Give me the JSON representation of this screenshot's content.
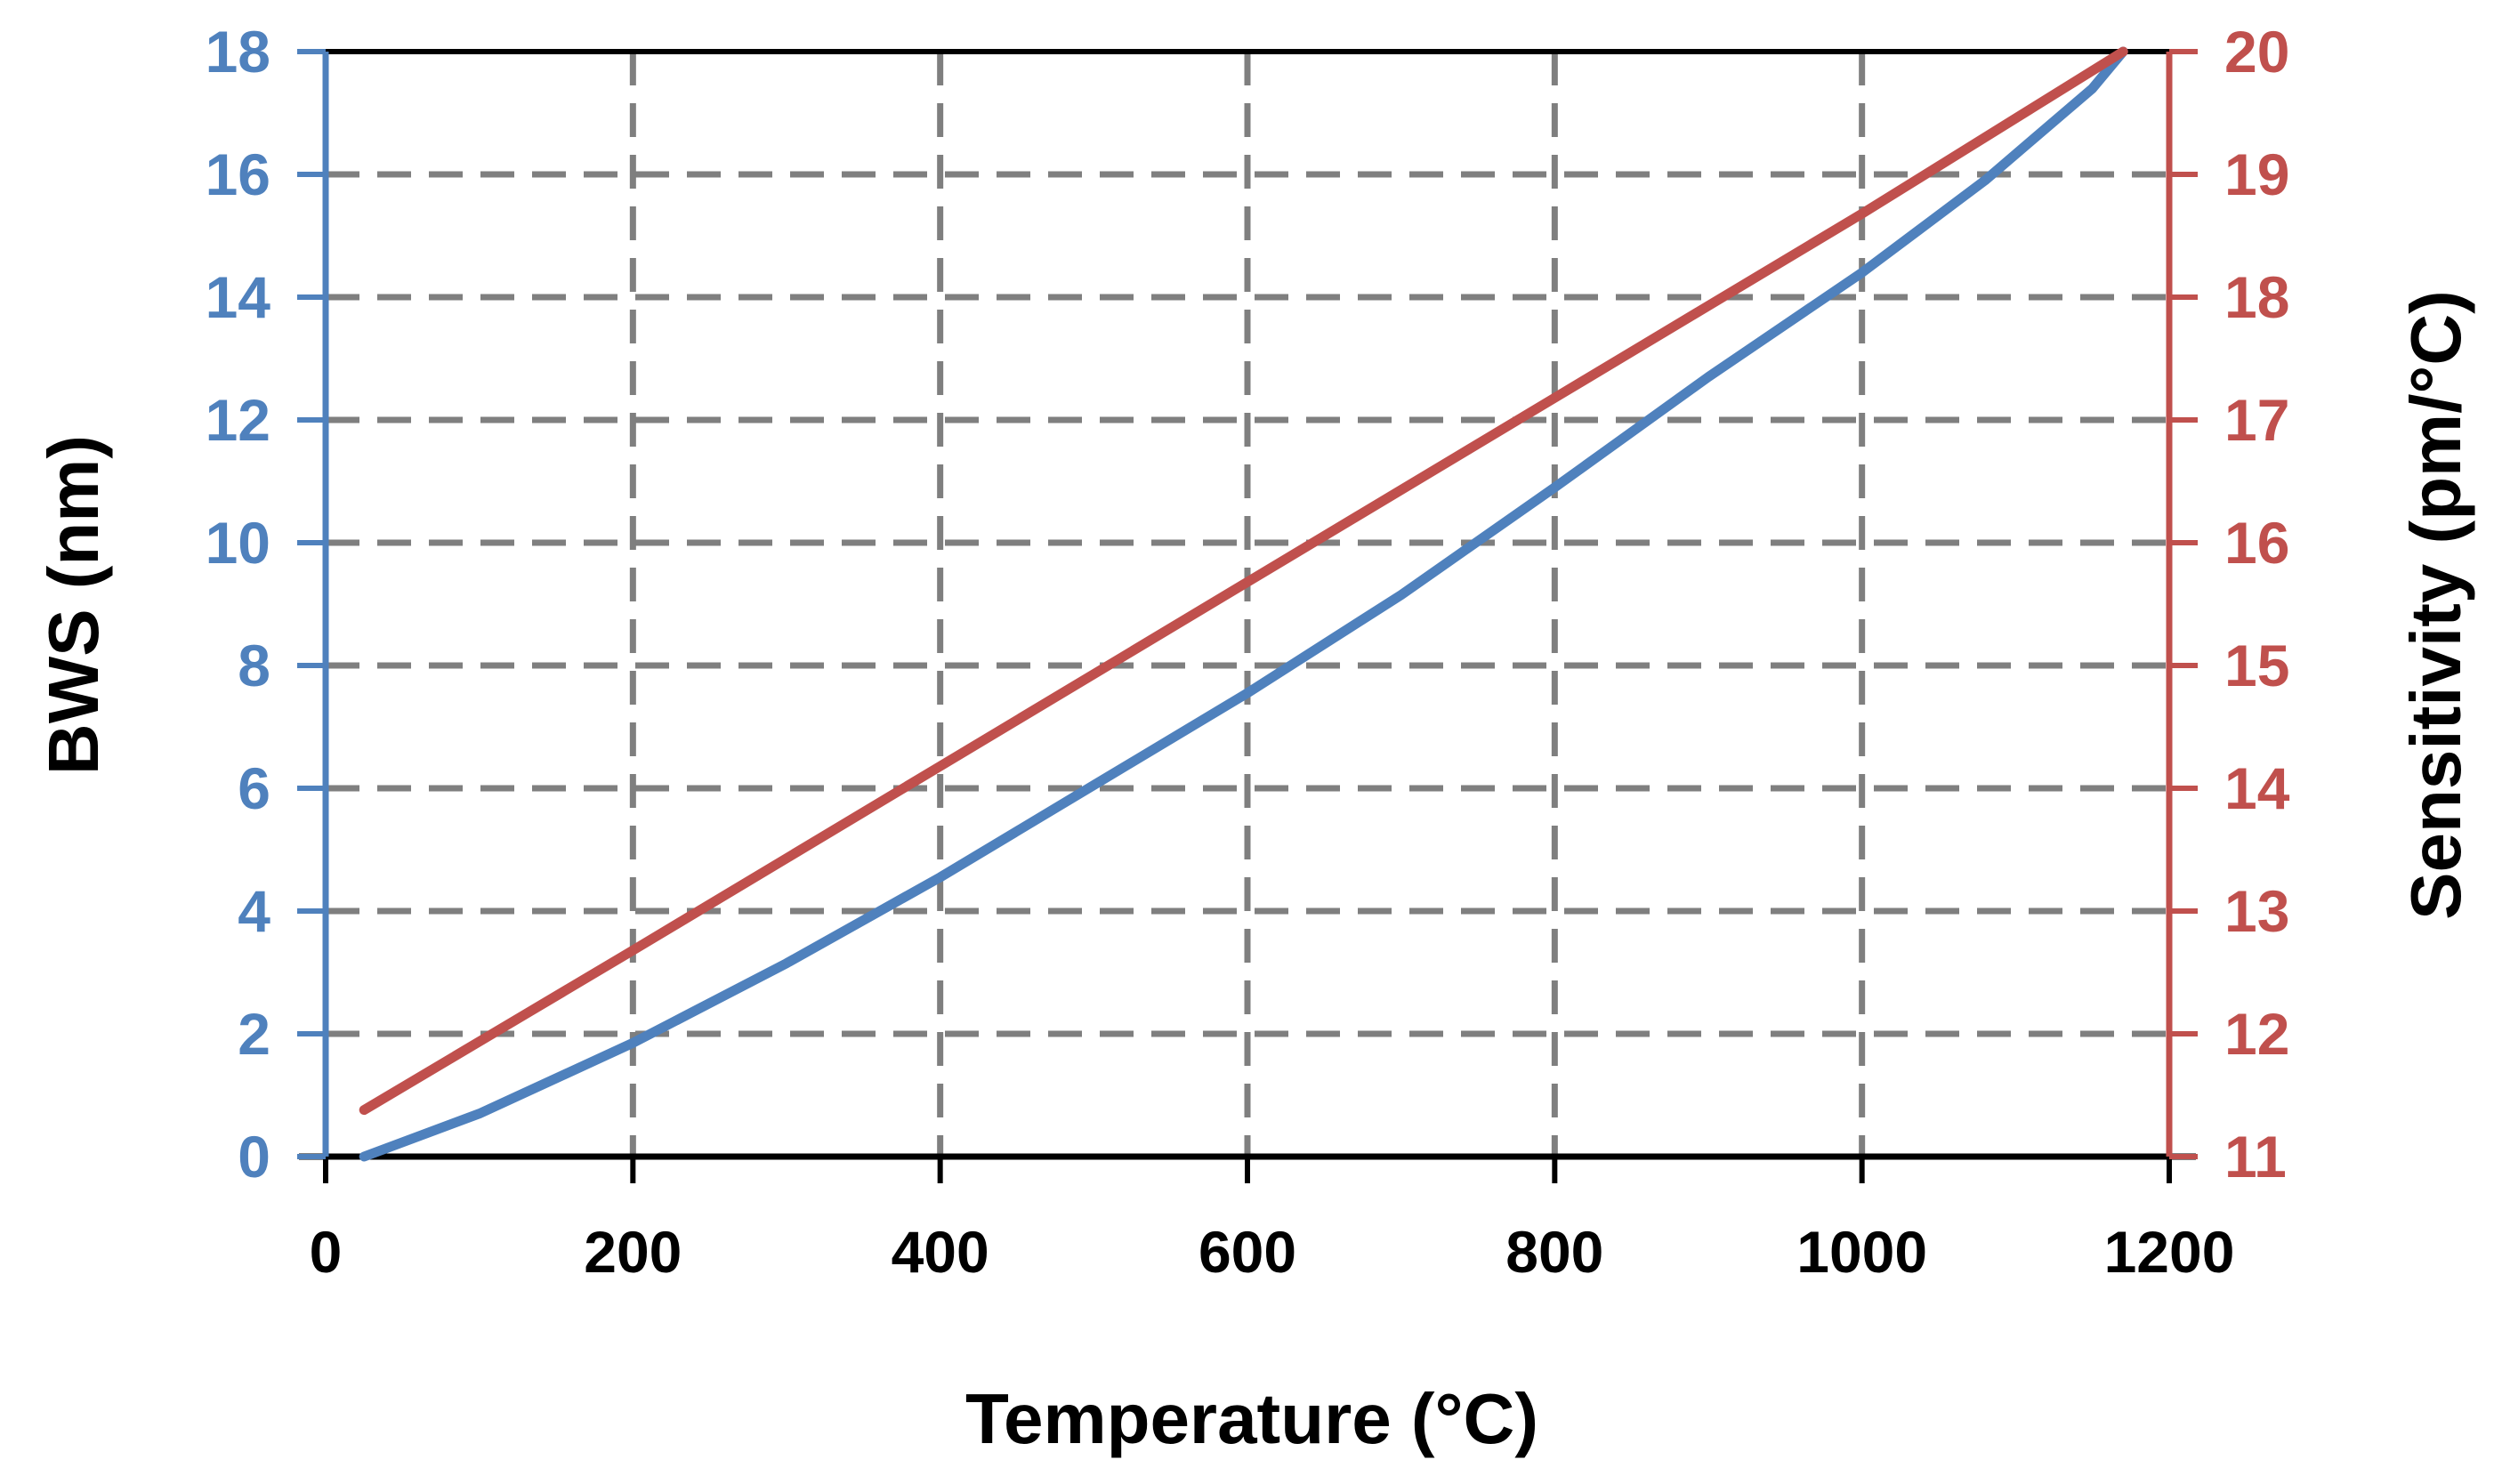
{
  "chart_data": {
    "type": "line",
    "title": "",
    "xlabel": "Temperature (°C)",
    "ylabel_left": "BWS (nm)",
    "ylabel_right": "Sensitivity (pm/°C)",
    "xlim": [
      0,
      1200
    ],
    "ylim_left": [
      0,
      18
    ],
    "ylim_right": [
      11,
      20
    ],
    "x_ticks": [
      "0",
      "200",
      "400",
      "600",
      "800",
      "1000",
      "1200"
    ],
    "y_left_ticks": [
      "0",
      "2",
      "4",
      "6",
      "8",
      "10",
      "12",
      "14",
      "16",
      "18"
    ],
    "y_right_ticks": [
      "11",
      "12",
      "13",
      "14",
      "15",
      "16",
      "17",
      "18",
      "19",
      "20"
    ],
    "grid": true,
    "legend": "none",
    "colors": {
      "bws": "#4f81bd",
      "sensitivity": "#c0504d",
      "grid": "#7f7f7f",
      "frame": "#000000"
    },
    "series": [
      {
        "name": "BWS (nm)",
        "axis": "left",
        "x": [
          25,
          100,
          200,
          300,
          400,
          500,
          600,
          700,
          800,
          900,
          1000,
          1080,
          1150,
          1170
        ],
        "y": [
          0,
          0.7,
          1.85,
          3.15,
          4.55,
          6.05,
          7.55,
          9.15,
          10.9,
          12.7,
          14.4,
          15.9,
          17.4,
          18.0
        ]
      },
      {
        "name": "Sensitivity (pm/°C)",
        "axis": "right",
        "x": [
          25,
          200,
          400,
          600,
          800,
          1000,
          1170
        ],
        "y": [
          11.38,
          12.68,
          14.18,
          15.68,
          17.18,
          18.68,
          20.0
        ]
      }
    ]
  }
}
